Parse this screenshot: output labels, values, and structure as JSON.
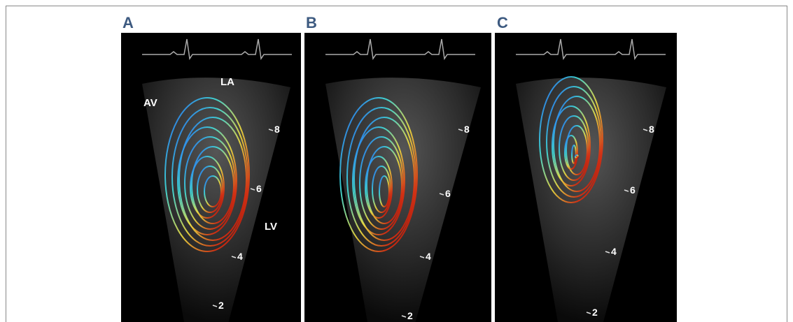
{
  "panels": [
    {
      "label": "A",
      "annotations": [
        "LA",
        "AV",
        "LV"
      ],
      "depth_marks": [
        "8",
        "6",
        "4",
        "2"
      ]
    },
    {
      "label": "B",
      "annotations": [],
      "depth_marks": [
        "8",
        "6",
        "4",
        "2"
      ]
    },
    {
      "label": "C",
      "annotations": [],
      "depth_marks": [
        "8",
        "6",
        "4",
        "2"
      ]
    }
  ]
}
